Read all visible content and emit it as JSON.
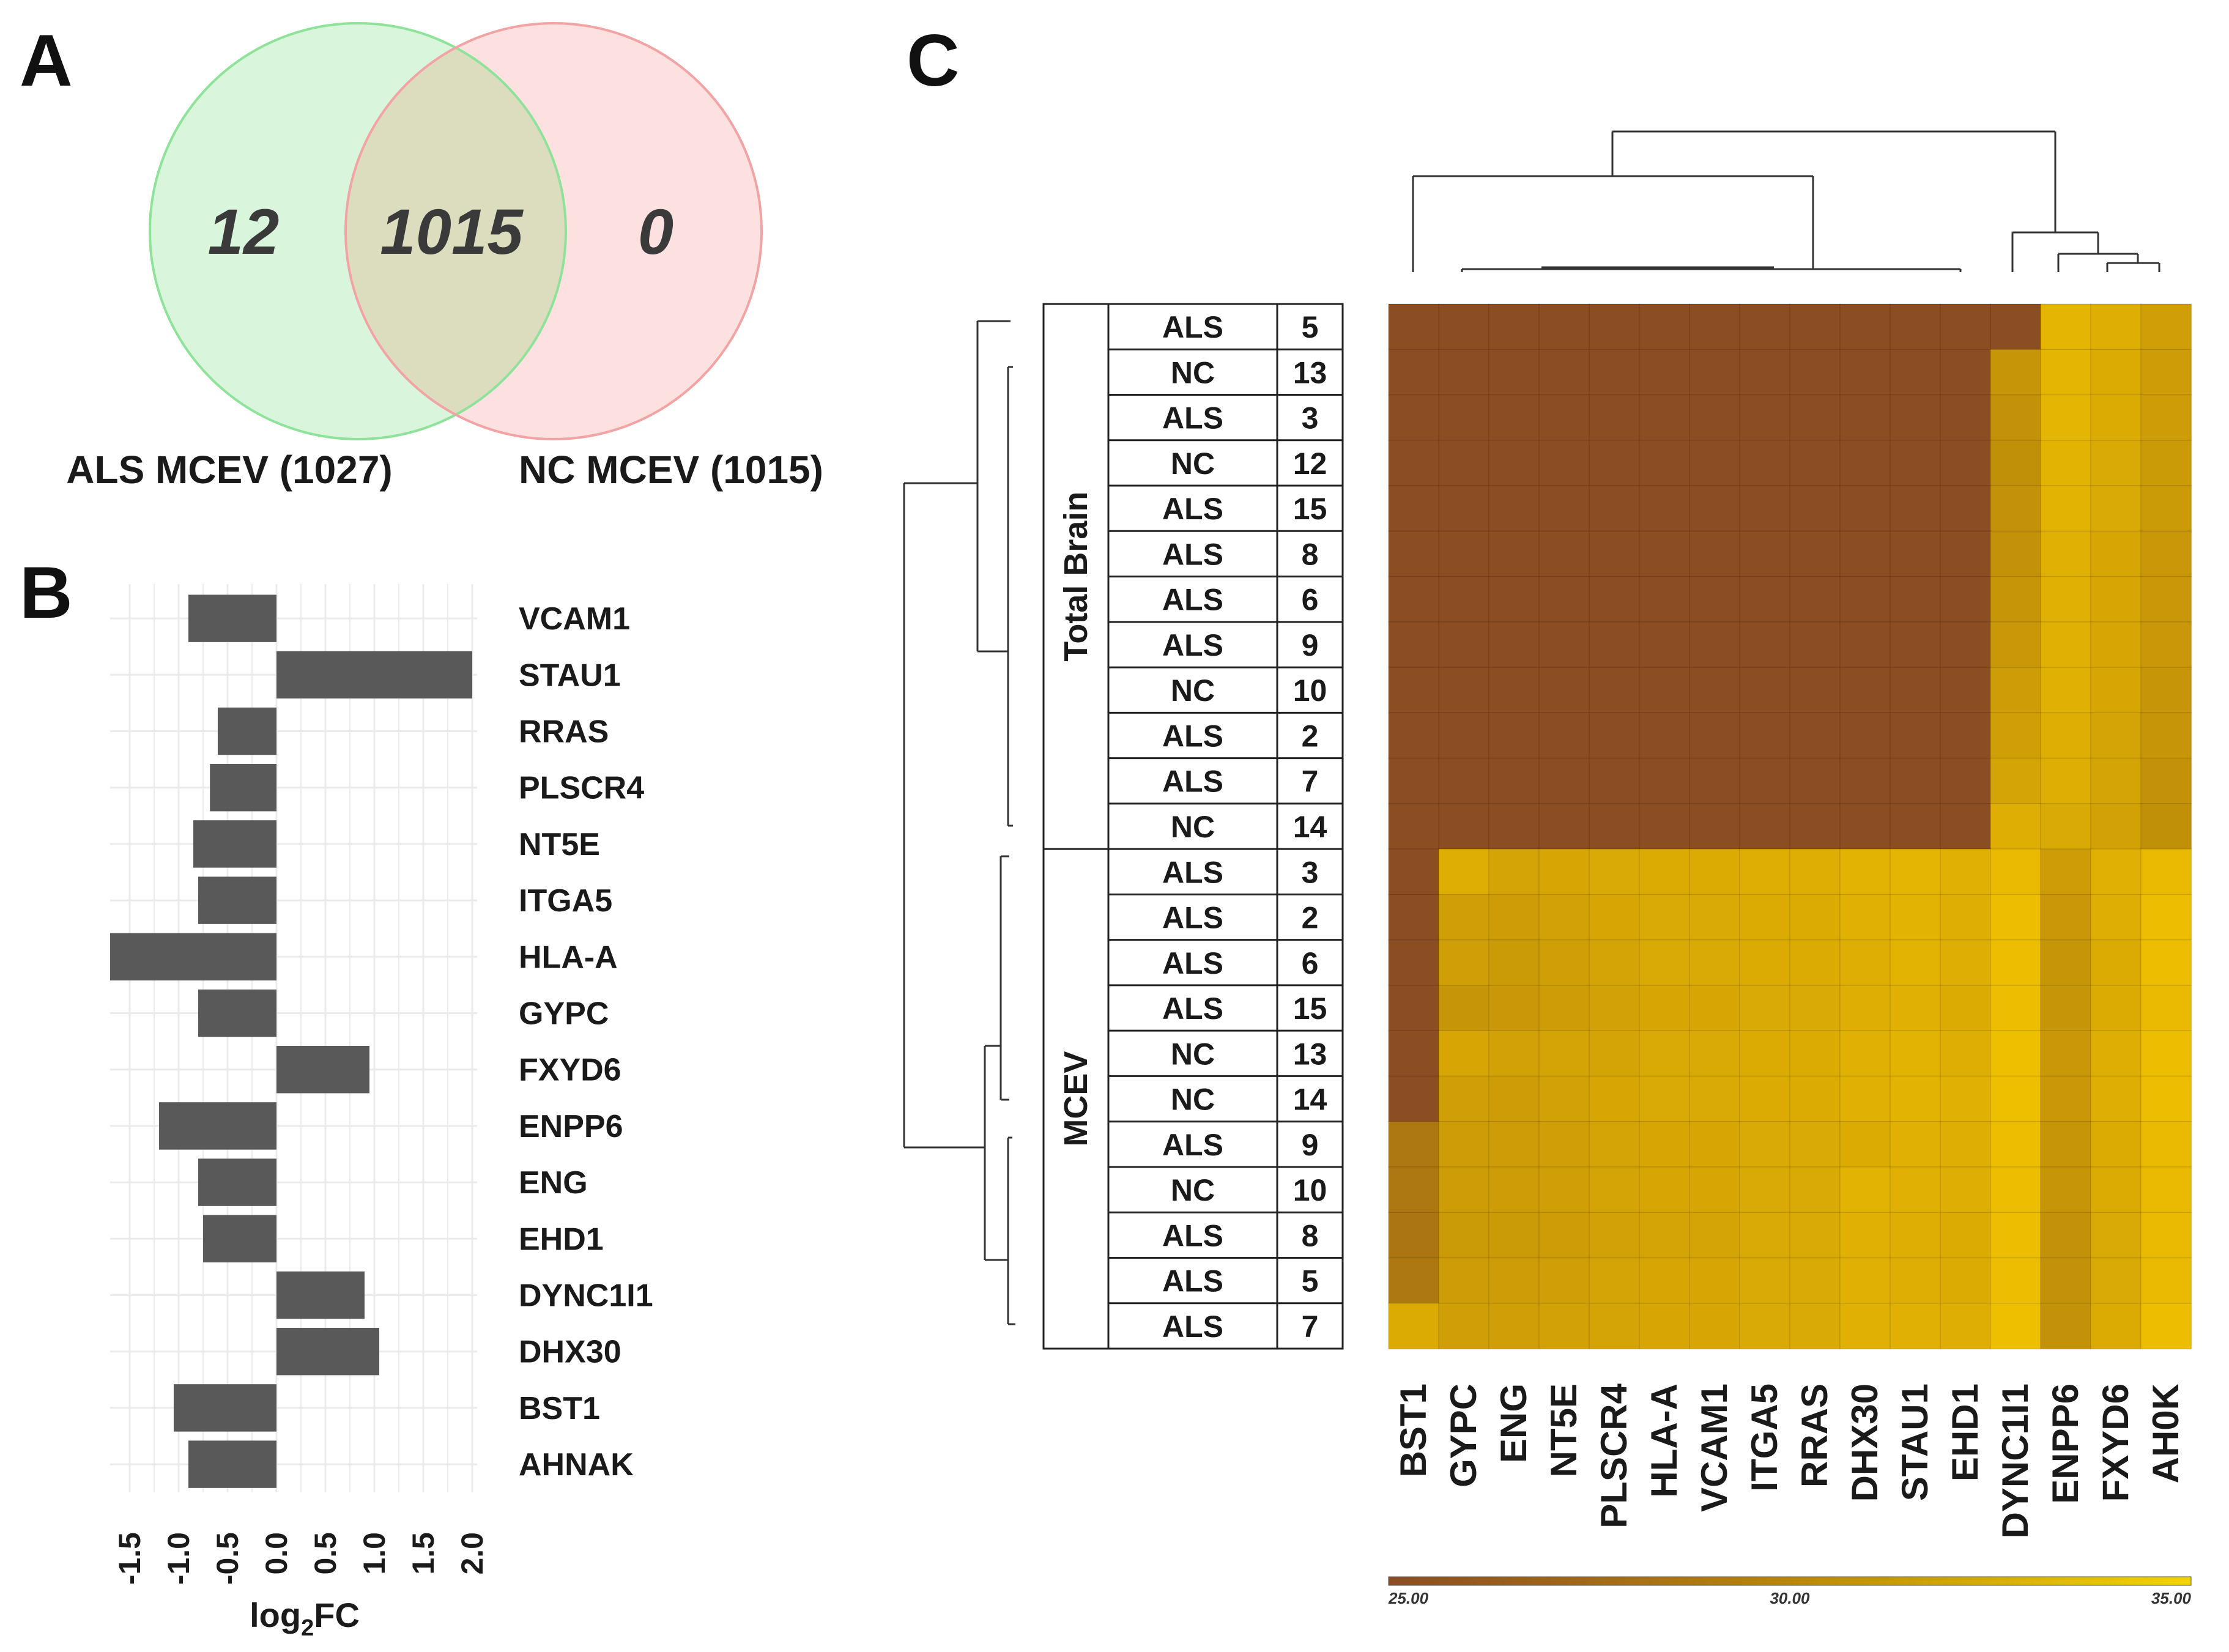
{
  "panels": {
    "a": "A",
    "b": "B",
    "c": "C"
  },
  "colors": {
    "venn_left_fill": "#d9f5dc",
    "venn_left_stroke": "#8fe29a",
    "venn_right_fill": "#fde0e0",
    "venn_right_stroke": "#f2a3a3",
    "venn_overlap_fill": "#dcdcbf",
    "bar": "#595959",
    "grid": "#ebebeb",
    "heat_low": "#8b4d22",
    "heat_high": "#f3c400"
  },
  "chart_data": [
    {
      "type": "venn",
      "title": "",
      "sets": [
        {
          "name": "ALS MCEV",
          "label": "ALS MCEV (1027)",
          "total": 1027
        },
        {
          "name": "NC MCEV",
          "label": "NC MCEV (1015)",
          "total": 1015
        }
      ],
      "regions": {
        "left_only": "12",
        "overlap": "1015",
        "right_only": "0"
      }
    },
    {
      "type": "bar",
      "orientation": "horizontal",
      "xlabel_main": "log",
      "xlabel_sub": "2",
      "xlabel_tail": "FC",
      "xlim": [
        -1.7,
        2.05
      ],
      "ticks": [
        -1.5,
        -1.0,
        -0.5,
        0.0,
        0.5,
        1.0,
        1.5,
        2.0
      ],
      "tick_labels": [
        "-1.5",
        "-1.0",
        "-0.5",
        "0.0",
        "0.5",
        "1.0",
        "1.5",
        "2.0"
      ],
      "categories": [
        "VCAM1",
        "STAU1",
        "RRAS",
        "PLSCR4",
        "NT5E",
        "ITGA5",
        "HLA-A",
        "GYPC",
        "FXYD6",
        "ENPP6",
        "ENG",
        "EHD1",
        "DYNC1I1",
        "DHX30",
        "BST1",
        "AHNAK"
      ],
      "values": [
        -0.9,
        2.0,
        -0.6,
        -0.68,
        -0.85,
        -0.8,
        -1.7,
        -0.8,
        0.95,
        -1.2,
        -0.8,
        -0.75,
        0.9,
        1.05,
        -1.05,
        -0.9
      ]
    },
    {
      "type": "heatmap",
      "columns": [
        "BST1",
        "GYPC",
        "ENG",
        "NT5E",
        "PLSCR4",
        "HLA-A",
        "VCAM1",
        "ITGA5",
        "RRAS",
        "DHX30",
        "STAU1",
        "EHD1",
        "DYNC1I1",
        "ENPP6",
        "FXYD6",
        "AH0K"
      ],
      "groups": [
        {
          "name": "Total Brain",
          "rows": 12
        },
        {
          "name": "MCEV",
          "rows": 11
        }
      ],
      "rows": [
        {
          "cond": "ALS",
          "id": "5"
        },
        {
          "cond": "NC",
          "id": "13"
        },
        {
          "cond": "ALS",
          "id": "3"
        },
        {
          "cond": "NC",
          "id": "12"
        },
        {
          "cond": "ALS",
          "id": "15"
        },
        {
          "cond": "ALS",
          "id": "8"
        },
        {
          "cond": "ALS",
          "id": "6"
        },
        {
          "cond": "ALS",
          "id": "9"
        },
        {
          "cond": "NC",
          "id": "10"
        },
        {
          "cond": "ALS",
          "id": "2"
        },
        {
          "cond": "ALS",
          "id": "7"
        },
        {
          "cond": "NC",
          "id": "14"
        },
        {
          "cond": "ALS",
          "id": "3"
        },
        {
          "cond": "ALS",
          "id": "2"
        },
        {
          "cond": "ALS",
          "id": "6"
        },
        {
          "cond": "ALS",
          "id": "15"
        },
        {
          "cond": "NC",
          "id": "13"
        },
        {
          "cond": "NC",
          "id": "14"
        },
        {
          "cond": "ALS",
          "id": "9"
        },
        {
          "cond": "NC",
          "id": "10"
        },
        {
          "cond": "ALS",
          "id": "8"
        },
        {
          "cond": "ALS",
          "id": "5"
        },
        {
          "cond": "ALS",
          "id": "7"
        }
      ],
      "values": [
        [
          25.0,
          25.0,
          25.0,
          25.0,
          25.0,
          25.0,
          25.0,
          25.0,
          25.0,
          25.0,
          25.0,
          25.0,
          25.0,
          33.8,
          33.2,
          32.0
        ],
        [
          25.0,
          25.0,
          25.0,
          25.0,
          25.0,
          25.0,
          25.0,
          25.0,
          25.0,
          25.0,
          25.0,
          25.0,
          31.2,
          33.8,
          33.0,
          31.8
        ],
        [
          25.0,
          25.0,
          25.0,
          25.0,
          25.0,
          25.0,
          25.0,
          25.0,
          25.0,
          25.0,
          25.0,
          25.0,
          31.0,
          33.8,
          33.0,
          31.8
        ],
        [
          25.0,
          25.0,
          25.0,
          25.0,
          25.0,
          25.0,
          25.0,
          25.0,
          25.0,
          25.0,
          25.0,
          25.0,
          30.8,
          33.6,
          32.8,
          31.6
        ],
        [
          25.0,
          25.0,
          25.0,
          25.0,
          25.0,
          25.0,
          25.0,
          25.0,
          25.0,
          25.0,
          25.0,
          25.0,
          31.0,
          33.6,
          32.8,
          31.6
        ],
        [
          25.0,
          25.0,
          25.0,
          25.0,
          25.0,
          25.0,
          25.0,
          25.0,
          25.0,
          25.0,
          25.0,
          25.0,
          31.0,
          33.4,
          32.6,
          31.4
        ],
        [
          25.0,
          25.0,
          25.0,
          25.0,
          25.0,
          25.0,
          25.0,
          25.0,
          25.0,
          25.0,
          25.0,
          25.0,
          31.2,
          33.4,
          32.6,
          31.4
        ],
        [
          25.0,
          25.0,
          25.0,
          25.0,
          25.0,
          25.0,
          25.0,
          25.0,
          25.0,
          25.0,
          25.0,
          25.0,
          31.4,
          33.4,
          32.6,
          31.4
        ],
        [
          25.0,
          25.0,
          25.0,
          25.0,
          25.0,
          25.0,
          25.0,
          25.0,
          25.0,
          25.0,
          25.0,
          25.0,
          31.8,
          33.4,
          32.6,
          31.2
        ],
        [
          25.0,
          25.0,
          25.0,
          25.0,
          25.0,
          25.0,
          25.0,
          25.0,
          25.0,
          25.0,
          25.0,
          25.0,
          32.0,
          33.2,
          32.4,
          31.2
        ],
        [
          25.0,
          25.0,
          25.0,
          25.0,
          25.0,
          25.0,
          25.0,
          25.0,
          25.0,
          25.0,
          25.0,
          25.0,
          32.4,
          33.2,
          32.4,
          31.0
        ],
        [
          25.0,
          25.0,
          25.0,
          25.0,
          25.0,
          25.0,
          25.0,
          25.0,
          25.0,
          25.0,
          25.0,
          25.0,
          33.2,
          32.8,
          32.2,
          30.8
        ],
        [
          25.0,
          33.2,
          32.4,
          32.6,
          32.8,
          33.0,
          33.0,
          33.2,
          33.2,
          33.6,
          33.8,
          33.4,
          34.2,
          31.8,
          33.4,
          34.2
        ],
        [
          25.0,
          32.0,
          31.8,
          32.2,
          32.6,
          32.8,
          32.8,
          33.0,
          33.0,
          33.4,
          33.6,
          33.2,
          34.4,
          31.4,
          33.2,
          34.4
        ],
        [
          25.0,
          32.0,
          31.6,
          32.0,
          32.4,
          32.8,
          32.8,
          33.0,
          33.0,
          33.2,
          33.6,
          33.2,
          34.4,
          31.2,
          33.0,
          34.4
        ],
        [
          25.0,
          31.2,
          31.4,
          31.8,
          32.2,
          32.6,
          32.6,
          32.8,
          32.8,
          33.2,
          33.4,
          33.0,
          34.4,
          31.2,
          33.0,
          34.2
        ],
        [
          25.0,
          32.6,
          32.2,
          32.4,
          32.4,
          32.8,
          32.8,
          33.0,
          33.0,
          33.4,
          33.6,
          33.2,
          34.6,
          31.4,
          33.2,
          34.4
        ],
        [
          25.0,
          32.0,
          31.8,
          32.2,
          32.6,
          32.8,
          32.8,
          33.0,
          33.0,
          33.4,
          33.6,
          33.4,
          34.6,
          31.4,
          33.2,
          34.4
        ],
        [
          28.8,
          31.8,
          31.8,
          32.0,
          32.4,
          32.6,
          32.6,
          32.8,
          32.8,
          33.0,
          33.4,
          33.2,
          34.4,
          31.2,
          33.0,
          34.2
        ],
        [
          28.8,
          31.8,
          31.8,
          32.0,
          32.4,
          32.6,
          32.6,
          32.8,
          32.8,
          33.6,
          33.4,
          33.2,
          34.4,
          31.2,
          33.0,
          34.2
        ],
        [
          28.6,
          31.6,
          31.6,
          31.8,
          32.2,
          32.4,
          32.4,
          32.8,
          32.8,
          33.4,
          33.2,
          33.0,
          34.4,
          31.0,
          32.8,
          34.2
        ],
        [
          28.8,
          31.8,
          31.8,
          32.0,
          32.4,
          32.6,
          32.6,
          32.8,
          32.8,
          33.4,
          33.2,
          33.0,
          34.4,
          31.0,
          32.8,
          34.2
        ],
        [
          33.0,
          32.0,
          32.0,
          32.2,
          32.4,
          32.6,
          32.6,
          32.8,
          32.8,
          33.4,
          33.4,
          33.2,
          34.6,
          31.0,
          33.0,
          34.4
        ]
      ],
      "scale": {
        "min": 25,
        "max": 35,
        "labels": [
          "25.00",
          "30.00",
          "35.00"
        ]
      }
    }
  ]
}
